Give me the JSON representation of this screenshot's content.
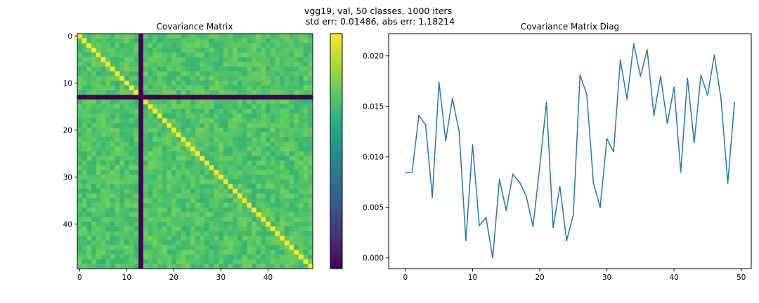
{
  "figure": {
    "suptitle_line1": "vgg19, val, 50 classes, 1000 iters",
    "suptitle_line2": "std err: 0.01486, abs err: 1.18214"
  },
  "chart_data": [
    {
      "type": "heatmap",
      "title": "Covariance Matrix",
      "xlabel": "",
      "ylabel": "",
      "size": 50,
      "colormap": "viridis",
      "colorbar": true,
      "xticks": [
        0,
        10,
        20,
        30,
        40
      ],
      "yticks": [
        0,
        10,
        20,
        30,
        40
      ],
      "dead_class_index": 13,
      "diagonal_value": "max",
      "off_diagonal_level": 0.72
    },
    {
      "type": "line",
      "title": "Covariance Matrix Diag",
      "xlabel": "",
      "ylabel": "",
      "color": "#1f77b4",
      "xlim": [
        -2.5,
        51.5
      ],
      "ylim": [
        -0.00106,
        0.0222
      ],
      "xticks": [
        0,
        10,
        20,
        30,
        40,
        50
      ],
      "yticks": [
        0.0,
        0.005,
        0.01,
        0.015,
        0.02
      ],
      "ytick_labels": [
        "0.000",
        "0.005",
        "0.010",
        "0.015",
        "0.020"
      ],
      "x": [
        0,
        1,
        2,
        3,
        4,
        5,
        6,
        7,
        8,
        9,
        10,
        11,
        12,
        13,
        14,
        15,
        16,
        17,
        18,
        19,
        20,
        21,
        22,
        23,
        24,
        25,
        26,
        27,
        28,
        29,
        30,
        31,
        32,
        33,
        34,
        35,
        36,
        37,
        38,
        39,
        40,
        41,
        42,
        43,
        44,
        45,
        46,
        47,
        48,
        49
      ],
      "y": [
        0.0084,
        0.0085,
        0.0141,
        0.0132,
        0.006,
        0.0174,
        0.0116,
        0.0158,
        0.0125,
        0.0017,
        0.0112,
        0.0032,
        0.004,
        0.0,
        0.0078,
        0.0047,
        0.0083,
        0.0075,
        0.0061,
        0.0031,
        0.009,
        0.0154,
        0.003,
        0.0071,
        0.0017,
        0.0043,
        0.0181,
        0.0162,
        0.0074,
        0.005,
        0.0118,
        0.0105,
        0.0196,
        0.0157,
        0.0212,
        0.018,
        0.0206,
        0.0141,
        0.018,
        0.0133,
        0.0169,
        0.0085,
        0.0178,
        0.0114,
        0.0181,
        0.0161,
        0.0201,
        0.0157,
        0.0074,
        0.0154
      ]
    }
  ]
}
